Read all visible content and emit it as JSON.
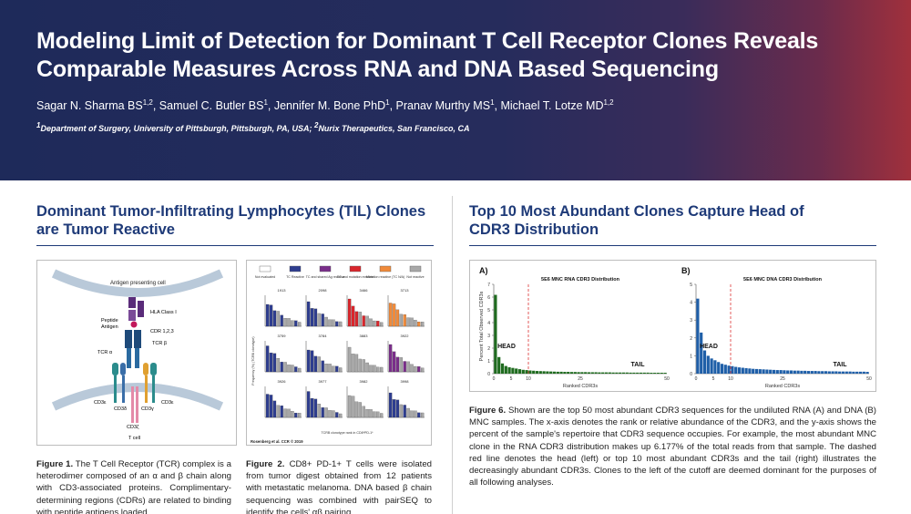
{
  "header": {
    "title_line1": "Modeling Limit of Detection for Dominant T Cell Receptor Clones Reveals",
    "title_line2": "Comparable Measures Across RNA and DNA Based Sequencing",
    "authors": [
      {
        "name": "Sagar N. Sharma BS",
        "sup": "1,2",
        "sep": ", "
      },
      {
        "name": "Samuel C. Butler BS",
        "sup": "1",
        "sep": ", "
      },
      {
        "name": "Jennifer M. Bone PhD",
        "sup": "1",
        "sep": ", "
      },
      {
        "name": "Pranav Murthy MS",
        "sup": "1",
        "sep": ", "
      },
      {
        "name": "Michael T. Lotze MD",
        "sup": "1,2",
        "sep": ""
      }
    ],
    "affil_1_sup": "1",
    "affil_1": "Department of Surgery, University of Pittsburgh, Pittsburgh, PA, USA; ",
    "affil_2_sup": "2",
    "affil_2": "Nurix Therapeutics, San Francisco, CA"
  },
  "left": {
    "title_line1": "Dominant Tumor-Infiltrating Lymphocytes (TIL) Clones",
    "title_line2": "are Tumor Reactive",
    "fig1": {
      "labels": {
        "apc": "Antigen presenting cell",
        "hla": "HLA Class I",
        "peptide": "Peptide",
        "antigen": "Antigen",
        "cdr": "CDR 1,2,3",
        "tcra": "TCR α",
        "tcrb": "TCR β",
        "cd3e1": "CD3ε",
        "cd3d": "CD3δ",
        "cd3g": "CD3γ",
        "cd3e2": "CD3ε",
        "cd3z": "CD3ζ",
        "tcell": "T cell"
      },
      "caption_label": "Figure 1.",
      "caption_text": "The T Cell Receptor (TCR) complex is a heterodimer composed of an α and β chain along with CD3-associated proteins. Complimentary-determining regions (CDRs) are related to binding with peptide antigens loaded"
    },
    "fig2": {
      "legend": [
        "Not evaluated",
        "TC Reactive",
        "TC and shared Ag reactive",
        "TC and mutation reactive",
        "Mutation reactive (TC N/A)",
        "Not reactive"
      ],
      "legend_colors": [
        "#ffffff",
        "#2e3d8f",
        "#7a2e8a",
        "#d9262c",
        "#f08a3a",
        "#a8a8a8"
      ],
      "panels": [
        "1913",
        "2098",
        "3466",
        "3713",
        "3759",
        "3784",
        "3883",
        "3922",
        "3926",
        "3977",
        "3982",
        "3998"
      ],
      "ylabel": "Frequency (%) (TCRB clonotype)",
      "xlabel": "TCRB clonotype rank in CD8*PD-1*",
      "citation": "Rosenberg et al. CCR © 2019",
      "caption_label": "Figure 2.",
      "caption_text": "CD8+ PD-1+ T cells were isolated from tumor digest obtained from 12 patients with metastatic melanoma. DNA based β chain sequencing was combined with pairSEQ to identify the cells' αβ pairing."
    }
  },
  "right": {
    "title_line1": "Top 10 Most Abundant Clones Capture Head of",
    "title_line2": "CDR3 Distribution",
    "fig6": {
      "ylabel": "Percent Total Observed CDR3s",
      "panel_a": {
        "letter": "A)",
        "title": "5E6 MNC RNA CDR3 Distribution",
        "head": "HEAD",
        "tail": "TAIL",
        "xlabel": "Ranked CDR3s",
        "color": "#1f6b1f"
      },
      "panel_b": {
        "letter": "B)",
        "title": "5E6 MNC DNA CDR3 Distribution",
        "head": "HEAD",
        "tail": "TAIL",
        "xlabel": "Ranked CDR3s",
        "color": "#1f5fa8"
      },
      "caption_label": "Figure 6.",
      "caption_text": "Shown are the top 50 most abundant CDR3 sequences for the undiluted RNA (A) and DNA (B) MNC samples. The x-axis denotes the rank or relative abundance of the CDR3, and the y-axis shows the percent of the sample's repertoire that CDR3 sequence occupies. For example, the most abundant MNC clone in the RNA CDR3 distribution makes up 6.177% of the total reads from that sample. The dashed red line denotes the head (left) or top 10 most abundant CDR3s and the tail (right) illustrates the decreasingly abundant CDR3s. Clones to the left of the cutoff are deemed dominant for the purposes of all following analyses."
    }
  },
  "chart_data": [
    {
      "type": "bar",
      "title": "5E6 MNC RNA CDR3 Distribution",
      "xlabel": "Ranked CDR3s",
      "ylabel": "Percent Total Observed CDR3s",
      "xlim": [
        0,
        50
      ],
      "ylim": [
        0,
        7
      ],
      "yticks": [
        0,
        1,
        2,
        3,
        4,
        5,
        6,
        7
      ],
      "xticks": [
        0,
        5,
        10,
        25,
        50
      ],
      "cutoff": 10,
      "values": [
        6.177,
        1.3,
        0.8,
        0.6,
        0.5,
        0.45,
        0.4,
        0.35,
        0.3,
        0.28,
        0.25,
        0.23,
        0.21,
        0.2,
        0.19,
        0.18,
        0.17,
        0.16,
        0.15,
        0.15,
        0.14,
        0.14,
        0.13,
        0.13,
        0.12,
        0.12,
        0.12,
        0.11,
        0.11,
        0.11,
        0.1,
        0.1,
        0.1,
        0.1,
        0.09,
        0.09,
        0.09,
        0.09,
        0.09,
        0.08,
        0.08,
        0.08,
        0.08,
        0.08,
        0.08,
        0.07,
        0.07,
        0.07,
        0.07,
        0.07
      ]
    },
    {
      "type": "bar",
      "title": "5E6 MNC DNA CDR3 Distribution",
      "xlabel": "Ranked CDR3s",
      "ylabel": "Percent Total Observed CDR3s",
      "xlim": [
        0,
        50
      ],
      "ylim": [
        0,
        5
      ],
      "yticks": [
        0,
        1,
        2,
        3,
        4,
        5
      ],
      "xticks": [
        0,
        5,
        10,
        25,
        50
      ],
      "cutoff": 10,
      "values": [
        4.2,
        2.3,
        1.3,
        1.0,
        0.85,
        0.75,
        0.65,
        0.55,
        0.5,
        0.45,
        0.42,
        0.38,
        0.35,
        0.33,
        0.31,
        0.29,
        0.27,
        0.26,
        0.25,
        0.24,
        0.23,
        0.22,
        0.21,
        0.2,
        0.2,
        0.19,
        0.18,
        0.18,
        0.17,
        0.17,
        0.16,
        0.16,
        0.15,
        0.15,
        0.15,
        0.14,
        0.14,
        0.14,
        0.13,
        0.13,
        0.13,
        0.12,
        0.12,
        0.12,
        0.12,
        0.11,
        0.11,
        0.11,
        0.11,
        0.1
      ]
    }
  ]
}
